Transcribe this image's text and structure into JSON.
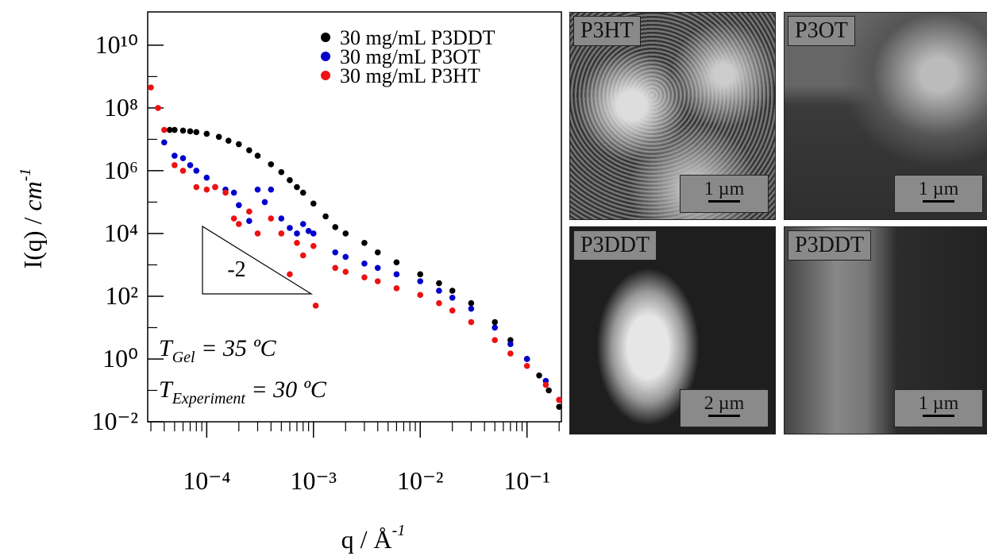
{
  "chart_data": {
    "type": "scatter",
    "xscale": "log",
    "yscale": "log",
    "xlabel": {
      "text": "q / Å",
      "superscript": "-1"
    },
    "ylabel": {
      "text": "I(q) / ",
      "unit": "cm",
      "superscript": "-1"
    },
    "xlim": [
      2.8e-05,
      0.21
    ],
    "ylim": [
      0.01,
      115000000000.0
    ],
    "xticks": [
      {
        "value": 0.0001,
        "label": "10⁻⁴"
      },
      {
        "value": 0.001,
        "label": "10⁻³"
      },
      {
        "value": 0.01,
        "label": "10⁻²"
      },
      {
        "value": 0.1,
        "label": "10⁻¹"
      }
    ],
    "xminorticks": [
      3e-05,
      4e-05,
      5e-05,
      6e-05,
      7e-05,
      8e-05,
      9e-05,
      0.0002,
      0.0003,
      0.0004,
      0.0005,
      0.0006,
      0.0007,
      0.0008,
      0.0009,
      0.002,
      0.003,
      0.004,
      0.005,
      0.006,
      0.007,
      0.008,
      0.009,
      0.02,
      0.03,
      0.04,
      0.05,
      0.06,
      0.07,
      0.08,
      0.09,
      0.2
    ],
    "yticks": [
      {
        "value": 0.01,
        "label": "10⁻²"
      },
      {
        "value": 1,
        "label": "10⁰"
      },
      {
        "value": 100,
        "label": "10²"
      },
      {
        "value": 10000,
        "label": "10⁴"
      },
      {
        "value": 1000000,
        "label": "10⁶"
      },
      {
        "value": 100000000,
        "label": "10⁸"
      },
      {
        "value": 10000000000,
        "label": "10¹⁰"
      }
    ],
    "yminorticks": [
      0.1,
      10,
      1000,
      100000,
      10000000,
      1000000000
    ],
    "legend": "top-right",
    "series": [
      {
        "name": "30 mg/mL P3DDT",
        "color": "#000000",
        "x": [
          4.5e-05,
          5e-05,
          6e-05,
          7e-05,
          8e-05,
          0.0001,
          0.00013,
          0.00016,
          0.0002,
          0.00025,
          0.0003,
          0.0004,
          0.0005,
          0.0006,
          0.0007,
          0.0008,
          0.001,
          0.0013,
          0.0016,
          0.002,
          0.003,
          0.004,
          0.006,
          0.01,
          0.015,
          0.02,
          0.03,
          0.05,
          0.07,
          0.1,
          0.13,
          0.16,
          0.2
        ],
        "values": [
          20000000.0,
          20000000.0,
          19000000.0,
          18000000.0,
          17000000.0,
          15000000.0,
          12000000.0,
          9000000.0,
          7000000.0,
          4500000.0,
          3000000.0,
          1600000.0,
          900000.0,
          500000.0,
          300000.0,
          200000.0,
          90000.0,
          35000.0,
          16000.0,
          10000.0,
          5000,
          2500,
          1200,
          500,
          260,
          150,
          60,
          15,
          4,
          1,
          0.3,
          0.1,
          0.03
        ]
      },
      {
        "name": "30 mg/mL P3OT",
        "color": "#0000cc",
        "x": [
          4e-05,
          5e-05,
          6e-05,
          7e-05,
          8e-05,
          0.0001,
          0.00012,
          0.00015,
          0.00018,
          0.0002,
          0.00025,
          0.0003,
          0.00035,
          0.0004,
          0.0005,
          0.0006,
          0.0007,
          0.0008,
          0.0009,
          0.001,
          0.0016,
          0.002,
          0.003,
          0.004,
          0.006,
          0.01,
          0.015,
          0.02,
          0.03,
          0.05,
          0.07,
          0.1,
          0.15,
          0.2
        ],
        "values": [
          8000000.0,
          3000000.0,
          2500000.0,
          1500000.0,
          1000000.0,
          600000.0,
          300000.0,
          250000.0,
          200000.0,
          80000.0,
          25000.0,
          250000.0,
          100000.0,
          250000.0,
          30000.0,
          15000.0,
          10000.0,
          20000.0,
          12000.0,
          10000.0,
          2500,
          1800,
          1100,
          800,
          500,
          300,
          150,
          90,
          40,
          10,
          3,
          1,
          0.2,
          0.05
        ]
      },
      {
        "name": "30 mg/mL P3HT",
        "color": "#ee1111",
        "x": [
          3e-05,
          3.5e-05,
          4e-05,
          5e-05,
          6e-05,
          8e-05,
          0.0001,
          0.00012,
          0.00015,
          0.00018,
          0.0002,
          0.00025,
          0.0003,
          0.0004,
          0.0005,
          0.0006,
          0.0007,
          0.0008,
          0.001,
          0.00105,
          0.0016,
          0.002,
          0.003,
          0.004,
          0.006,
          0.01,
          0.015,
          0.02,
          0.03,
          0.05,
          0.07,
          0.1,
          0.15,
          0.2
        ],
        "values": [
          450000000.0,
          100000000.0,
          20000000.0,
          1500000.0,
          1000000.0,
          300000.0,
          250000.0,
          300000.0,
          200000.0,
          30000.0,
          20000.0,
          50000.0,
          10000.0,
          30000.0,
          10000.0,
          500,
          5000,
          2000,
          4000,
          50,
          800,
          600,
          400,
          300,
          180,
          110,
          60,
          35,
          15,
          4,
          1.5,
          0.6,
          0.15,
          0.05
        ]
      }
    ],
    "annotations": {
      "slope": "-2",
      "gel": {
        "symbol": "T",
        "subscript": "Gel",
        "text": " = 35 ºC"
      },
      "experiment": {
        "symbol": "T",
        "subscript": "Experiment",
        "text": " = 30 ºC"
      }
    }
  },
  "images": [
    {
      "label": "P3HT",
      "scale": "1 µm"
    },
    {
      "label": "P3OT",
      "scale": "1 µm"
    },
    {
      "label": "P3DDT",
      "scale": "2 µm"
    },
    {
      "label": "P3DDT",
      "scale": "1 µm"
    }
  ]
}
